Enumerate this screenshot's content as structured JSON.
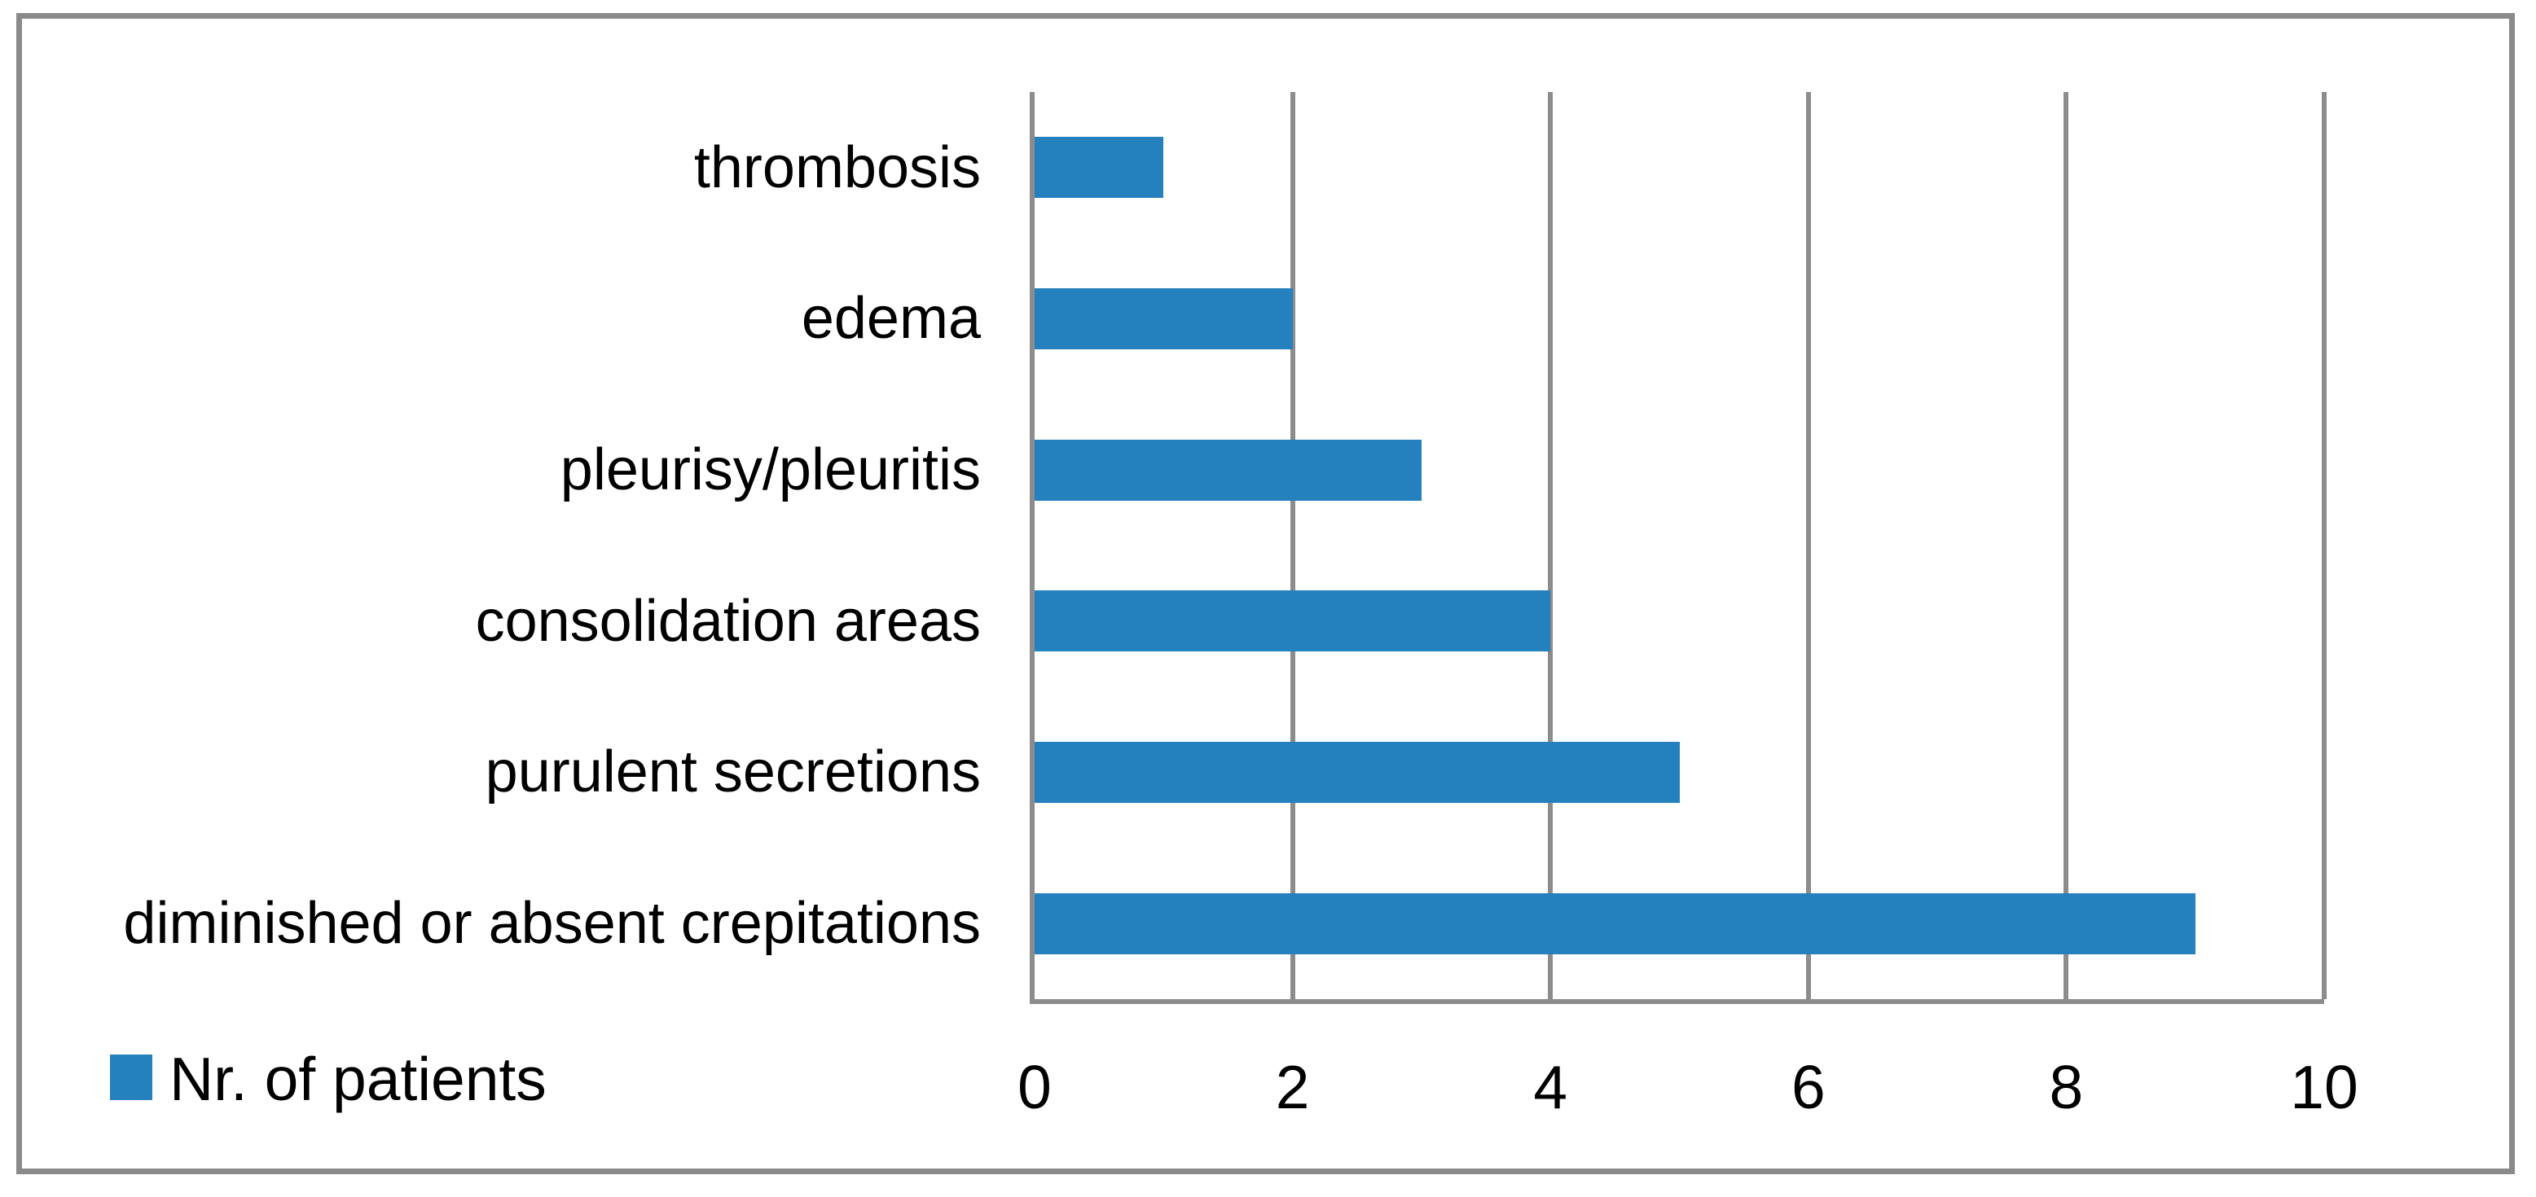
{
  "chart_data": {
    "type": "bar",
    "orientation": "horizontal",
    "title": "",
    "categories": [
      "thrombosis",
      "edema",
      "pleurisy/pleuritis",
      "consolidation areas",
      "purulent secretions",
      "diminished or absent crepitations"
    ],
    "series": [
      {
        "name": "Nr. of patients",
        "values": [
          1,
          2,
          3,
          4,
          5,
          9
        ]
      }
    ],
    "xlabel": "",
    "ylabel": "",
    "xlim": [
      0,
      10
    ],
    "x_ticks": [
      0,
      2,
      4,
      6,
      8,
      10
    ],
    "grid": "vertical gridlines at every x tick",
    "legend_position": "bottom-left"
  },
  "legend": {
    "label": "Nr. of patients"
  },
  "colors": {
    "bar": "#2581BE",
    "gridline": "#8C8C8C",
    "frame_border": "#8A8A8A",
    "text": "#000000",
    "background": "#FFFFFF"
  }
}
